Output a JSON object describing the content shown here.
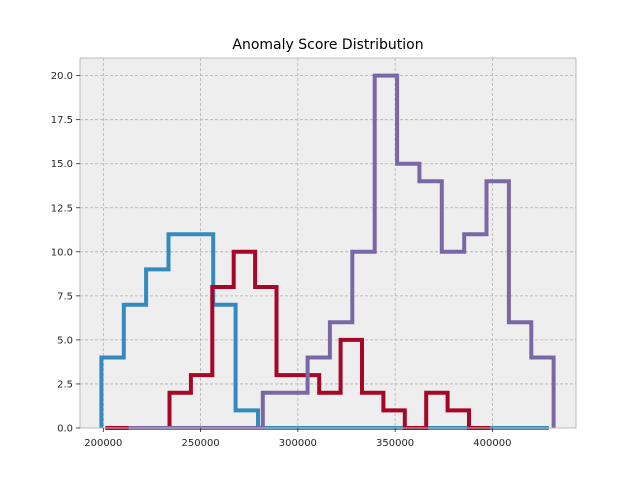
{
  "chart_data": {
    "type": "histogram-step",
    "title": "Anomaly Score Distribution",
    "xlabel": "",
    "ylabel": "",
    "xlim": [
      188000,
      443000
    ],
    "ylim": [
      0,
      21
    ],
    "xticks": [
      200000,
      250000,
      300000,
      350000,
      400000
    ],
    "xtick_labels": [
      "200000",
      "250000",
      "300000",
      "350000",
      "400000"
    ],
    "yticks": [
      0,
      2.5,
      5,
      7.5,
      10,
      12.5,
      15,
      17.5,
      20
    ],
    "ytick_labels": [
      "0.0",
      "2.5",
      "5.0",
      "7.5",
      "10.0",
      "12.5",
      "15.0",
      "17.5",
      "20.0"
    ],
    "grid": true,
    "series": [
      {
        "color": "#348ABD",
        "edges": [
          199000,
          210500,
          222000,
          233500,
          245000,
          256500,
          268000,
          279500,
          291000,
          302500,
          314000,
          325500,
          337000,
          348500,
          360000,
          371500,
          383000,
          394500,
          406000,
          417500,
          429000
        ],
        "counts": [
          4,
          7,
          9,
          11,
          11,
          7,
          1,
          0,
          0,
          0,
          0,
          0,
          0,
          0,
          0,
          0,
          0,
          0,
          0,
          0
        ]
      },
      {
        "color": "#A60628",
        "edges": [
          201000,
          212000,
          223000,
          234000,
          245000,
          256000,
          267000,
          278000,
          289000,
          300000,
          311000,
          322000,
          333000,
          344000,
          355000,
          366000,
          377000,
          388000,
          399000
        ],
        "counts": [
          0,
          0,
          0,
          2,
          3,
          8,
          10,
          8,
          3,
          3,
          2,
          5,
          2,
          1,
          0,
          2,
          1,
          0
        ]
      },
      {
        "color": "#7A68A6",
        "edges": [
          213000,
          224500,
          236000,
          247500,
          259000,
          270500,
          282000,
          293500,
          305000,
          316500,
          328000,
          339500,
          351000,
          362500,
          374000,
          385500,
          397000,
          408500,
          420000,
          431500
        ],
        "counts": [
          0,
          0,
          0,
          0,
          0,
          0,
          2,
          2,
          4,
          6,
          10,
          20,
          15,
          14,
          10,
          11,
          14,
          6,
          4
        ]
      }
    ]
  }
}
